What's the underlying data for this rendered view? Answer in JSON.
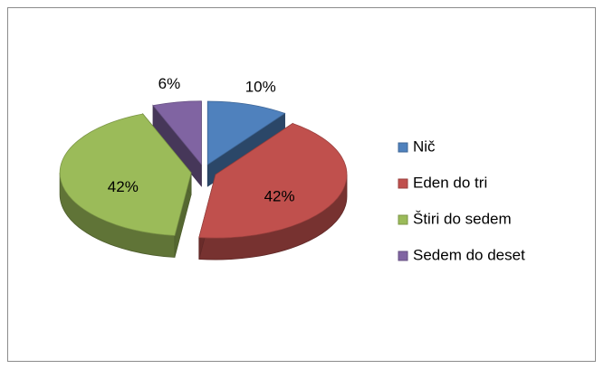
{
  "chart_data": {
    "type": "pie",
    "categories": [
      "Nič",
      "Eden do tri",
      "Štiri do sedem",
      "Sedem do deset"
    ],
    "values": [
      10,
      42,
      42,
      6
    ],
    "value_labels": [
      "10%",
      "42%",
      "42%",
      "6%"
    ],
    "colors": [
      "#4f81bd",
      "#c0504d",
      "#9bbb59",
      "#8064a2"
    ],
    "legend": "right"
  }
}
